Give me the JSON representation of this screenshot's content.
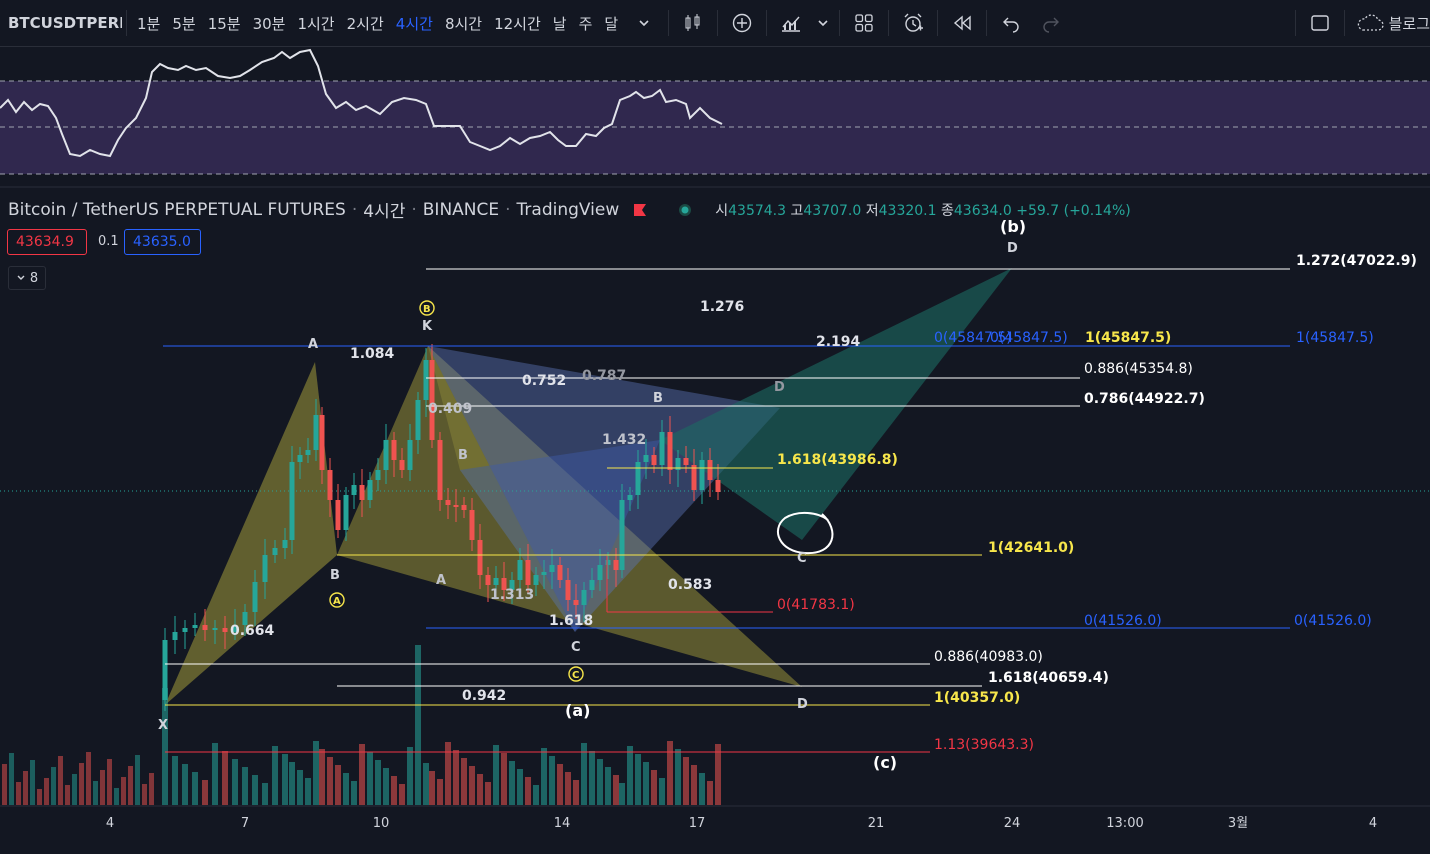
{
  "toolbar": {
    "symbol": "BTCUSDTPERP",
    "intervals": [
      "1분",
      "5분",
      "15분",
      "30분",
      "1시간",
      "2시간",
      "4시간",
      "8시간",
      "12시간",
      "날",
      "주",
      "달"
    ],
    "active_interval": "4시간",
    "blog_label": "블로그"
  },
  "legend": {
    "title": "Bitcoin / TetherUS PERPETUAL FUTURES",
    "interval": "4시간",
    "exchange": "BINANCE",
    "source": "TradingView",
    "o_label": "시",
    "o_value": "43574.3",
    "h_label": "고",
    "h_value": "43707.0",
    "l_label": "저",
    "l_value": "43320.1",
    "c_label": "종",
    "c_value": "43634.0",
    "change": "+59.7 (+0.14%)",
    "bid": "43634.9",
    "step": "0.1",
    "ask": "43635.0",
    "indicator_count": "8"
  },
  "colors": {
    "background": "#131722",
    "up": "#26a69a",
    "down": "#ef5350",
    "rsi_band": "#7e57c2",
    "fib_blue": "#2962ff",
    "fib_yellow": "#f7e64b",
    "fib_red": "#f23645",
    "active_interval": "#2962ff"
  },
  "levels": [
    {
      "label": "1.272(47022.9)",
      "color": "#ffffff"
    },
    {
      "label": "0(45847.5)",
      "color": "#2962ff"
    },
    {
      "label": "0(45847.5)",
      "color": "#2962ff"
    },
    {
      "label": "1(45847.5)",
      "color": "#f7e64b"
    },
    {
      "label": "1(45847.5)",
      "color": "#2962ff"
    },
    {
      "label": "0.886(45354.8)",
      "color": "#ffffff"
    },
    {
      "label": "0.786(44922.7)",
      "color": "#ffffff"
    },
    {
      "label": "1.618(43986.8)",
      "color": "#f7e64b"
    },
    {
      "label": "1(42641.0)",
      "color": "#f7e64b"
    },
    {
      "label": "0(41783.1)",
      "color": "#f23645"
    },
    {
      "label": "0(41526.0)",
      "color": "#2962ff"
    },
    {
      "label": "0(41526.0)",
      "color": "#2962ff"
    },
    {
      "label": "0.886(40983.0)",
      "color": "#ffffff"
    },
    {
      "label": "1.618(40659.4)",
      "color": "#ffffff"
    },
    {
      "label": "1(40357.0)",
      "color": "#f7e64b"
    },
    {
      "label": "1.13(39643.3)",
      "color": "#f23645"
    }
  ],
  "annotations": {
    "ratios": [
      "1.276",
      "2.194",
      "1.084",
      "0.752",
      "0.787",
      "0.409",
      "1.432",
      "0.583",
      "1.313",
      "1.618",
      "0.664",
      "0.942"
    ],
    "points": [
      "A",
      "B",
      "X",
      "B",
      "A",
      "C",
      "B",
      "D",
      "D",
      "C",
      "D",
      "D",
      "A",
      "K"
    ],
    "waves": [
      "(b)",
      "(a)",
      "(c)"
    ],
    "circled": [
      "B",
      "A",
      "C"
    ]
  },
  "x_axis": [
    "4",
    "7",
    "10",
    "14",
    "17",
    "21",
    "24",
    "13:00",
    "3월",
    "4"
  ]
}
